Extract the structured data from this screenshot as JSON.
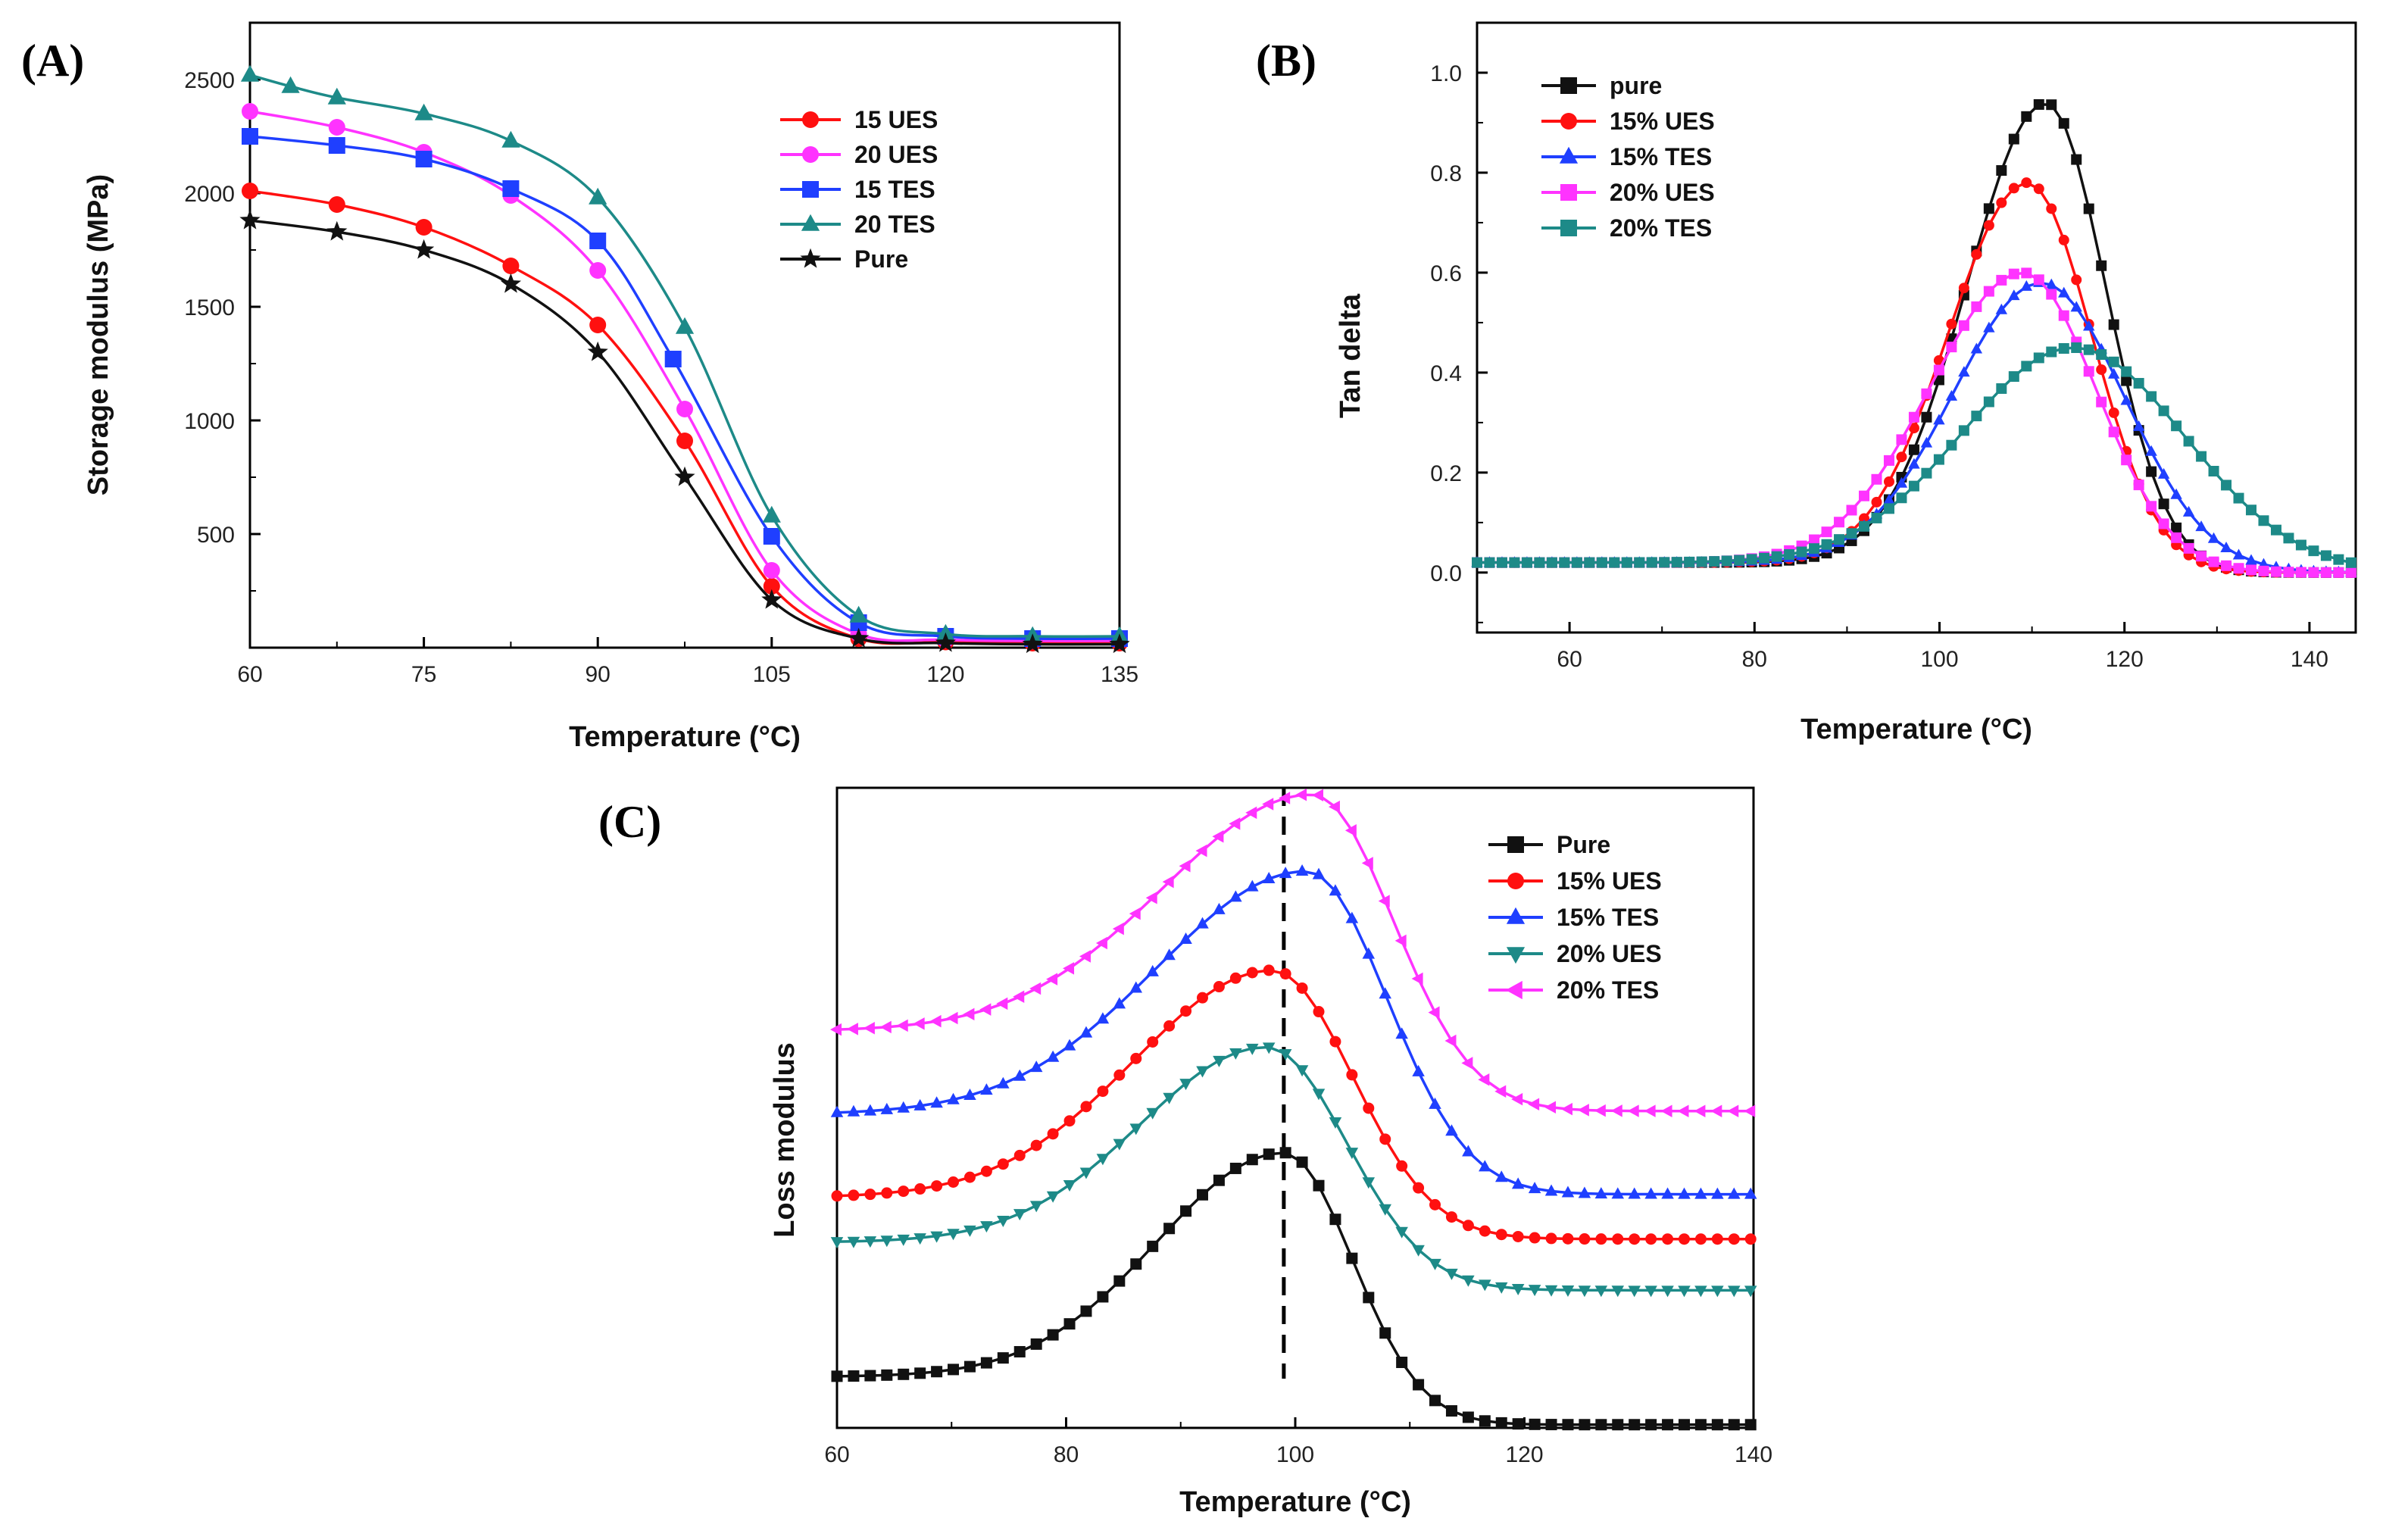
{
  "chart_data": [
    {
      "panel": "(A)",
      "type": "line",
      "xlabel": "Temperature (°C)",
      "ylabel": "Storage modulus (MPa)",
      "xlim": [
        60,
        135
      ],
      "ylim": [
        0,
        2750
      ],
      "xticks": [
        "60",
        "75",
        "90",
        "105",
        "120",
        "135"
      ],
      "yticks": [
        "500",
        "1000",
        "1500",
        "2000",
        "2500"
      ],
      "legend_position": "top-right",
      "series": [
        {
          "name": "15 UES",
          "color": "#ff1010",
          "marker": "circle",
          "points": [
            [
              60,
              2010
            ],
            [
              67.5,
              1950
            ],
            [
              75,
              1850
            ],
            [
              82.5,
              1680
            ],
            [
              90,
              1420
            ],
            [
              97.5,
              910
            ],
            [
              105,
              270
            ],
            [
              112.5,
              40
            ],
            [
              120,
              25
            ],
            [
              127.5,
              20
            ],
            [
              135,
              20
            ]
          ]
        },
        {
          "name": "20 UES",
          "color": "#ff33ff",
          "marker": "circle",
          "points": [
            [
              60,
              2360
            ],
            [
              67.5,
              2290
            ],
            [
              75,
              2180
            ],
            [
              82.5,
              1990
            ],
            [
              90,
              1660
            ],
            [
              97.5,
              1050
            ],
            [
              105,
              340
            ],
            [
              112.5,
              60
            ],
            [
              120,
              35
            ],
            [
              127.5,
              30
            ],
            [
              135,
              30
            ]
          ]
        },
        {
          "name": "15 TES",
          "color": "#1f3fff",
          "marker": "square",
          "points": [
            [
              60,
              2250
            ],
            [
              67.5,
              2210
            ],
            [
              75,
              2150
            ],
            [
              82.5,
              2020
            ],
            [
              90,
              1790
            ],
            [
              96.5,
              1270
            ],
            [
              105,
              490
            ],
            [
              112.5,
              110
            ],
            [
              120,
              50
            ],
            [
              127.5,
              40
            ],
            [
              135,
              40
            ]
          ]
        },
        {
          "name": "20 TES",
          "color": "#1d8a88",
          "marker": "triangle",
          "points": [
            [
              60,
              2520
            ],
            [
              63.5,
              2470
            ],
            [
              67.5,
              2420
            ],
            [
              75,
              2350
            ],
            [
              82.5,
              2230
            ],
            [
              90,
              1980
            ],
            [
              97.5,
              1410
            ],
            [
              105,
              580
            ],
            [
              112.5,
              140
            ],
            [
              120,
              60
            ],
            [
              127.5,
              50
            ],
            [
              135,
              50
            ]
          ]
        },
        {
          "name": "Pure",
          "color": "#111111",
          "marker": "star",
          "points": [
            [
              60,
              1880
            ],
            [
              67.5,
              1830
            ],
            [
              75,
              1750
            ],
            [
              82.5,
              1600
            ],
            [
              90,
              1300
            ],
            [
              97.5,
              750
            ],
            [
              105,
              210
            ],
            [
              112.5,
              40
            ],
            [
              120,
              20
            ],
            [
              127.5,
              15
            ],
            [
              135,
              15
            ]
          ]
        }
      ]
    },
    {
      "panel": "(B)",
      "type": "line",
      "xlabel": "Temperature (°C)",
      "ylabel": "Tan delta",
      "xlim": [
        50,
        145
      ],
      "ylim": [
        -0.12,
        1.1
      ],
      "xticks": [
        "60",
        "80",
        "100",
        "120",
        "140"
      ],
      "yticks": [
        "0.0",
        "0.2",
        "0.4",
        "0.6",
        "0.8",
        "1.0"
      ],
      "legend_position": "top-left",
      "series": [
        {
          "name": "pure",
          "color": "#111111",
          "marker": "square",
          "peak": {
            "x": 111.5,
            "y": 0.94
          },
          "baseline": 0.02,
          "sigma_left": 8.5,
          "sigma_right": 6.5,
          "tail": 0.0
        },
        {
          "name": "15% UES",
          "color": "#ff1010",
          "marker": "circle",
          "peak": {
            "x": 109.5,
            "y": 0.78
          },
          "baseline": 0.02,
          "sigma_left": 8.5,
          "sigma_right": 7.0,
          "tail": 0.0
        },
        {
          "name": "15% TES",
          "color": "#1f3fff",
          "marker": "triangle",
          "peak": {
            "x": 111.0,
            "y": 0.58
          },
          "baseline": 0.02,
          "sigma_left": 9.5,
          "sigma_right": 9.0,
          "tail": 0.0
        },
        {
          "name": "20% UES",
          "color": "#ff33ff",
          "marker": "square",
          "peak": {
            "x": 109.0,
            "y": 0.6
          },
          "baseline": 0.02,
          "sigma_left": 10.0,
          "sigma_right": 8.0,
          "tail": 0.0
        },
        {
          "name": "20% TES",
          "color": "#1d8a88",
          "marker": "square",
          "peak": {
            "x": 114.5,
            "y": 0.45
          },
          "baseline": 0.02,
          "sigma_left": 12.0,
          "sigma_right": 12.0,
          "tail": 0.0
        }
      ]
    },
    {
      "panel": "(C)",
      "type": "line",
      "xlabel": "Temperature (°C)",
      "ylabel": "Loss modulus",
      "xlim": [
        60,
        140
      ],
      "ylim": [
        0,
        1
      ],
      "xticks": [
        "60",
        "80",
        "100",
        "120",
        "140"
      ],
      "yticks": [],
      "y_tick_labels_shown": false,
      "reference_line_x": 99,
      "legend_position": "top-right",
      "series": [
        {
          "name": "Pure",
          "color": "#111111",
          "marker": "square",
          "peak": {
            "x": 99,
            "y": 0.43
          },
          "baseline": 0.08,
          "tail": 0.005,
          "sigma_left": 11,
          "sigma_right": 6
        },
        {
          "name": "15% UES",
          "color": "#ff1010",
          "marker": "circle",
          "peak": {
            "x": 98,
            "y": 0.715
          },
          "baseline": 0.36,
          "tail": 0.295,
          "sigma_left": 12,
          "sigma_right": 7
        },
        {
          "name": "15% TES",
          "color": "#1f3fff",
          "marker": "triangle",
          "peak": {
            "x": 101,
            "y": 0.87
          },
          "baseline": 0.49,
          "tail": 0.365,
          "sigma_left": 13,
          "sigma_right": 7
        },
        {
          "name": "20% UES",
          "color": "#1d8a88",
          "marker": "triangle-down",
          "peak": {
            "x": 97.5,
            "y": 0.595
          },
          "baseline": 0.29,
          "tail": 0.215,
          "sigma_left": 11,
          "sigma_right": 7
        },
        {
          "name": "20% TES",
          "color": "#ff33ff",
          "marker": "triangle-left",
          "peak": {
            "x": 101.5,
            "y": 0.99
          },
          "baseline": 0.62,
          "tail": 0.495,
          "sigma_left": 13,
          "sigma_right": 7
        }
      ]
    }
  ]
}
